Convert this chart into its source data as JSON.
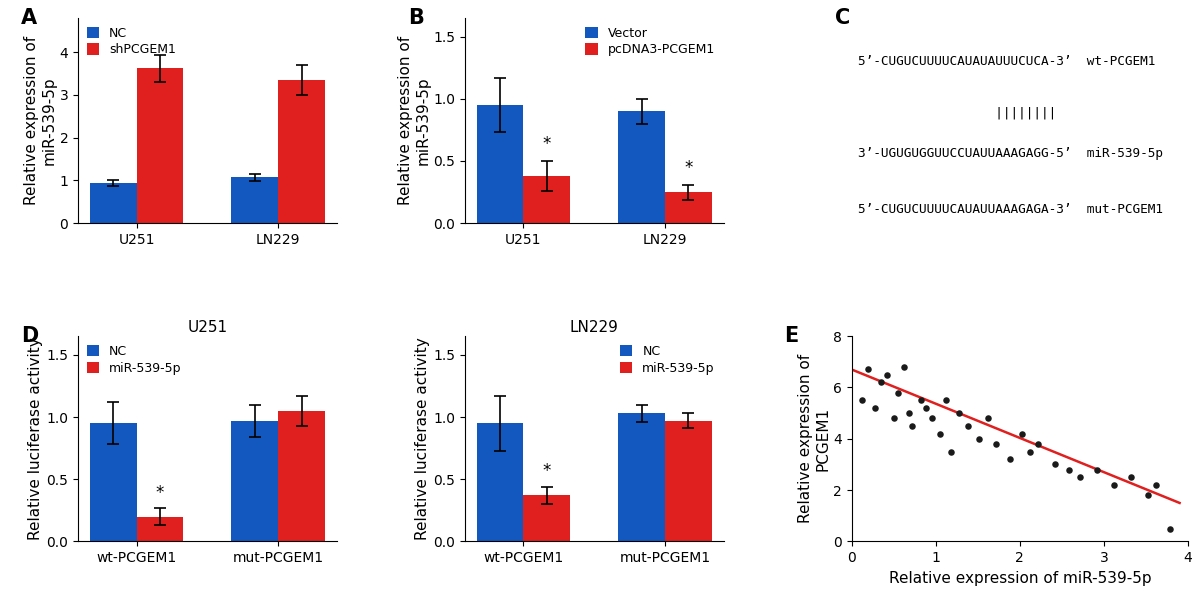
{
  "panelA": {
    "categories": [
      "U251",
      "LN229"
    ],
    "NC": [
      0.93,
      1.07
    ],
    "shPCGEM1": [
      3.62,
      3.35
    ],
    "NC_err": [
      0.07,
      0.08
    ],
    "shPCGEM1_err": [
      0.32,
      0.35
    ],
    "ylabel": "Relative expression of\nmiR-539-5p",
    "ylim": [
      0,
      4.8
    ],
    "yticks": [
      0,
      1,
      2,
      3,
      4
    ],
    "legend1": "NC",
    "legend2": "shPCGEM1",
    "bar_color1": "#1358be",
    "bar_color2": "#e01f1f"
  },
  "panelB": {
    "categories": [
      "U251",
      "LN229"
    ],
    "Vector": [
      0.95,
      0.9
    ],
    "pcDNA3": [
      0.38,
      0.25
    ],
    "Vector_err": [
      0.22,
      0.1
    ],
    "pcDNA3_err": [
      0.12,
      0.06
    ],
    "ylabel": "Relative expression of\nmiR-539-5p",
    "ylim": [
      0,
      1.65
    ],
    "yticks": [
      0.0,
      0.5,
      1.0,
      1.5
    ],
    "legend1": "Vector",
    "legend2": "pcDNA3-PCGEM1",
    "bar_color1": "#1358be",
    "bar_color2": "#e01f1f",
    "sig": [
      "*",
      "*"
    ]
  },
  "panelD_U251": {
    "categories": [
      "wt-PCGEM1",
      "mut-PCGEM1"
    ],
    "NC": [
      0.95,
      0.97
    ],
    "miR": [
      0.2,
      1.05
    ],
    "NC_err": [
      0.17,
      0.13
    ],
    "miR_err": [
      0.07,
      0.12
    ],
    "ylabel": "Relative luciferase activity",
    "ylim": [
      0,
      1.65
    ],
    "yticks": [
      0.0,
      0.5,
      1.0,
      1.5
    ],
    "title": "U251",
    "legend1": "NC",
    "legend2": "miR-539-5p",
    "bar_color1": "#1358be",
    "bar_color2": "#e01f1f",
    "sig": [
      "*",
      ""
    ]
  },
  "panelD_LN229": {
    "categories": [
      "wt-PCGEM1",
      "mut-PCGEM1"
    ],
    "NC": [
      0.95,
      1.03
    ],
    "miR": [
      0.37,
      0.97
    ],
    "NC_err": [
      0.22,
      0.07
    ],
    "miR_err": [
      0.07,
      0.06
    ],
    "ylabel": "Relative luciferase activity",
    "ylim": [
      0,
      1.65
    ],
    "yticks": [
      0.0,
      0.5,
      1.0,
      1.5
    ],
    "title": "LN229",
    "legend1": "NC",
    "legend2": "miR-539-5p",
    "bar_color1": "#1358be",
    "bar_color2": "#e01f1f",
    "sig": [
      "*",
      ""
    ]
  },
  "panelE": {
    "xlabel": "Relative expression of miR-539-5p",
    "ylabel": "Relative expression of\nPCGEM1",
    "xlim": [
      0,
      4
    ],
    "ylim": [
      0,
      8
    ],
    "xticks": [
      0,
      1,
      2,
      3,
      4
    ],
    "yticks": [
      0,
      2,
      4,
      6,
      8
    ],
    "scatter_x": [
      0.12,
      0.2,
      0.28,
      0.35,
      0.42,
      0.5,
      0.55,
      0.62,
      0.68,
      0.72,
      0.82,
      0.88,
      0.95,
      1.05,
      1.12,
      1.18,
      1.28,
      1.38,
      1.52,
      1.62,
      1.72,
      1.88,
      2.02,
      2.12,
      2.22,
      2.42,
      2.58,
      2.72,
      2.92,
      3.12,
      3.32,
      3.52,
      3.62,
      3.78
    ],
    "scatter_y": [
      5.5,
      6.7,
      5.2,
      6.2,
      6.5,
      4.8,
      5.8,
      6.8,
      5.0,
      4.5,
      5.5,
      5.2,
      4.8,
      4.2,
      5.5,
      3.5,
      5.0,
      4.5,
      4.0,
      4.8,
      3.8,
      3.2,
      4.2,
      3.5,
      3.8,
      3.0,
      2.8,
      2.5,
      2.8,
      2.2,
      2.5,
      1.8,
      2.2,
      0.5
    ],
    "line_x": [
      0,
      3.9
    ],
    "line_y": [
      6.7,
      1.5
    ],
    "dot_color": "#1a1a1a",
    "line_color": "#e01f1f"
  },
  "label_fontsize": 11,
  "panel_label_fontsize": 15,
  "tick_fontsize": 10,
  "bar_width": 0.33,
  "bg_color": "#ffffff"
}
